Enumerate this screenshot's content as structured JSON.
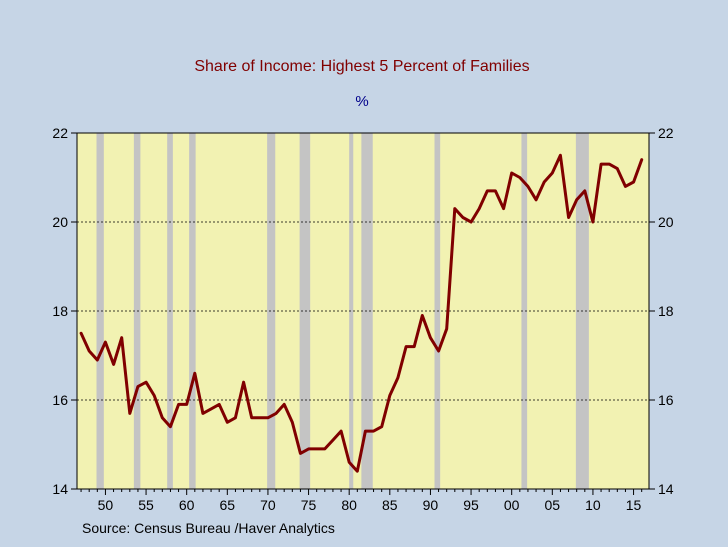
{
  "chart_data": {
    "type": "line",
    "title": "Share of Income: Highest 5 Percent of Families",
    "subtitle": "%",
    "source": "Source:   Census Bureau /Haver Analytics",
    "xlabel": "",
    "ylabel": "",
    "ylim": [
      14,
      22
    ],
    "xlim": [
      1946.5,
      2016.9
    ],
    "yticks": [
      14,
      16,
      18,
      20,
      22
    ],
    "xticks": [
      {
        "year": 1950,
        "label": "50"
      },
      {
        "year": 1955,
        "label": "55"
      },
      {
        "year": 1960,
        "label": "60"
      },
      {
        "year": 1965,
        "label": "65"
      },
      {
        "year": 1970,
        "label": "70"
      },
      {
        "year": 1975,
        "label": "75"
      },
      {
        "year": 1980,
        "label": "80"
      },
      {
        "year": 1985,
        "label": "85"
      },
      {
        "year": 1990,
        "label": "90"
      },
      {
        "year": 1995,
        "label": "95"
      },
      {
        "year": 2000,
        "label": "00"
      },
      {
        "year": 2005,
        "label": "05"
      },
      {
        "year": 2010,
        "label": "10"
      },
      {
        "year": 2015,
        "label": "15"
      }
    ],
    "recessions": [
      [
        1948.9,
        1949.8
      ],
      [
        1953.5,
        1954.3
      ],
      [
        1957.6,
        1958.3
      ],
      [
        1960.3,
        1961.1
      ],
      [
        1969.9,
        1970.9
      ],
      [
        1973.9,
        1975.2
      ],
      [
        1980.0,
        1980.5
      ],
      [
        1981.5,
        1982.9
      ],
      [
        1990.5,
        1991.2
      ],
      [
        2001.2,
        2001.9
      ],
      [
        2007.9,
        2009.5
      ]
    ],
    "series": [
      {
        "x": [
          1947,
          1948,
          1949,
          1950,
          1951,
          1952,
          1953,
          1954,
          1955,
          1956,
          1957,
          1958,
          1959,
          1960,
          1961,
          1962,
          1963,
          1964,
          1965,
          1966,
          1967,
          1968,
          1969,
          1970,
          1971,
          1972,
          1973,
          1974,
          1975,
          1976,
          1977,
          1978,
          1979,
          1980,
          1981,
          1982,
          1983,
          1984,
          1985,
          1986,
          1987,
          1988,
          1989,
          1990,
          1991,
          1992,
          1993,
          1994,
          1995,
          1996,
          1997,
          1998,
          1999,
          2000,
          2001,
          2002,
          2003,
          2004,
          2005,
          2006,
          2007,
          2008,
          2009,
          2010,
          2011,
          2012,
          2013,
          2014,
          2015,
          2016
        ],
        "values": [
          17.5,
          17.1,
          16.9,
          17.3,
          16.8,
          17.4,
          15.7,
          16.3,
          16.4,
          16.1,
          15.6,
          15.4,
          15.9,
          15.9,
          16.6,
          15.7,
          15.8,
          15.9,
          15.5,
          15.6,
          16.4,
          15.6,
          15.6,
          15.6,
          15.7,
          15.9,
          15.5,
          14.8,
          14.9,
          14.9,
          14.9,
          15.1,
          15.3,
          14.6,
          14.4,
          15.3,
          15.3,
          15.4,
          16.1,
          16.5,
          17.2,
          17.2,
          17.9,
          17.4,
          17.1,
          17.6,
          20.3,
          20.1,
          20.0,
          20.3,
          20.7,
          20.7,
          20.3,
          21.1,
          21.0,
          20.8,
          20.5,
          20.9,
          21.1,
          21.5,
          20.1,
          20.5,
          20.7,
          20.0,
          21.3,
          21.3,
          21.2,
          20.8,
          20.9,
          21.4
        ],
        "color": "#800000"
      }
    ],
    "colors": {
      "background": "#c6d5e6",
      "plot_area": "#f2f2b2",
      "recession": "#c4c4c4",
      "title": "#800000",
      "subtitle": "#00008b",
      "line": "#800000"
    }
  }
}
